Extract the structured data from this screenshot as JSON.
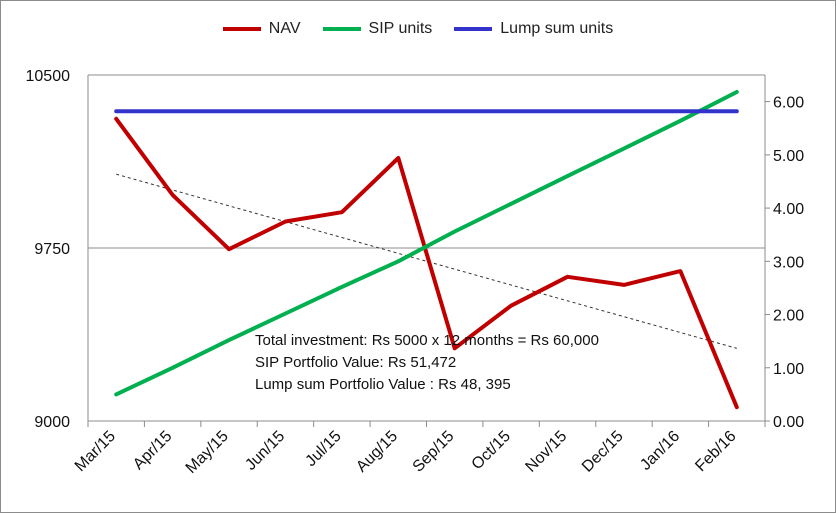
{
  "chart_data": {
    "type": "line",
    "categories": [
      "Mar/15",
      "Apr/15",
      "May/15",
      "Jun/15",
      "Jul/15",
      "Aug/15",
      "Sep/15",
      "Oct/15",
      "Nov/15",
      "Dec/15",
      "Jan/16",
      "Feb/16"
    ],
    "series": [
      {
        "name": "NAV",
        "axis": "left",
        "color": "#c00000",
        "values": [
          10310,
          9980,
          9745,
          9865,
          9905,
          10140,
          9315,
          9500,
          9625,
          9590,
          9650,
          9060
        ]
      },
      {
        "name": "SIP units",
        "axis": "right",
        "color": "#00b050",
        "values": [
          0.5,
          1.0,
          1.52,
          2.02,
          2.52,
          3.0,
          3.56,
          4.08,
          4.6,
          5.12,
          5.64,
          6.18
        ]
      },
      {
        "name": "Lump sum units",
        "axis": "right",
        "color": "#3333cc",
        "values": [
          5.82,
          5.82,
          5.82,
          5.82,
          5.82,
          5.82,
          5.82,
          5.82,
          5.82,
          5.82,
          5.82,
          5.82
        ]
      }
    ],
    "trendline": {
      "series": "NAV",
      "start": 10070,
      "end": 9315,
      "style": "dotted",
      "color": "#333333"
    },
    "y_left": {
      "min": 9000,
      "max": 10500,
      "ticks": [
        "10500",
        "9750",
        "9000"
      ]
    },
    "y_right": {
      "min": 0,
      "max": 6.5,
      "ticks": [
        "6.00",
        "5.00",
        "4.00",
        "3.00",
        "2.00",
        "1.00",
        "0.00"
      ]
    },
    "legend_position": "top",
    "annotation": [
      "Total investment: Rs 5000 x 12 months = Rs 60,000",
      "SIP Portfolio Value: Rs 51,472",
      "Lump sum Portfolio Value : Rs 48, 395"
    ]
  }
}
